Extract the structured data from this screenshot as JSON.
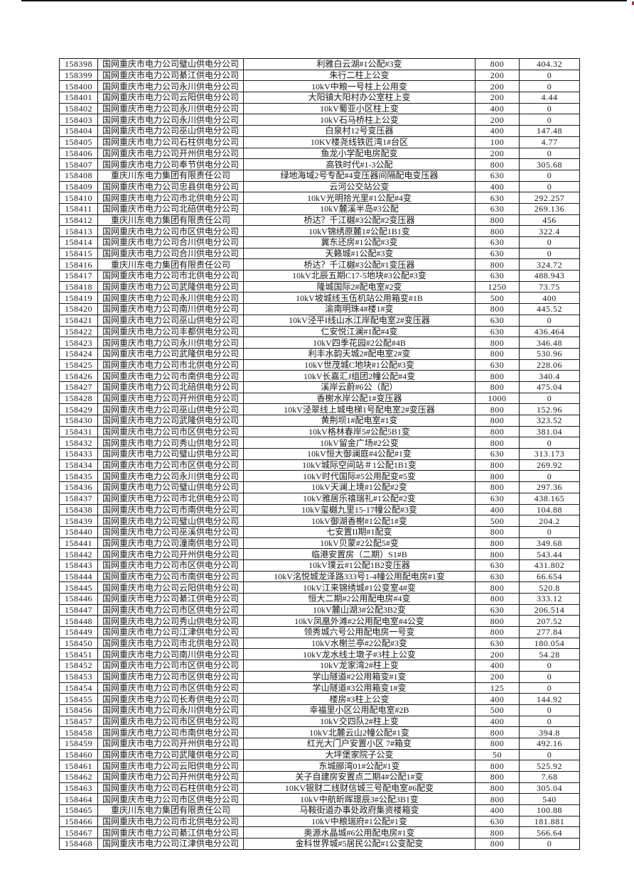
{
  "page": {
    "background": "#ffffff",
    "top_line_color": "#141414",
    "corner_dot_color": "#b23030"
  },
  "table": {
    "rows": [
      [
        "158398",
        "国网重庆市电力公司璧山供电分公司",
        "利雅白云湖#1公配#3变",
        "800",
        "404.32"
      ],
      [
        "158399",
        "国网重庆市电力公司綦江供电分公司",
        "朱行二柱上公变",
        "200",
        "0"
      ],
      [
        "158400",
        "国网重庆市电力公司永川供电分公司",
        "10kV中粮一号柱上公用变",
        "200",
        "0"
      ],
      [
        "158401",
        "国网重庆市电力公司云阳供电分公司",
        "大阳镇大阳村办公室柱上变",
        "200",
        "4.44"
      ],
      [
        "158402",
        "国网重庆市电力公司永川供电分公司",
        "10kV蜀亚小区柱上变",
        "400",
        "0"
      ],
      [
        "158403",
        "国网重庆市电力公司永川供电分公司",
        "10kV石马桥柱上公变",
        "200",
        "0"
      ],
      [
        "158404",
        "国网重庆市电力公司巫山供电分公司",
        "白泉村12号变压器",
        "400",
        "147.48"
      ],
      [
        "158405",
        "国网重庆市电力公司石柱供电分公司",
        "10KV楼尧线铁匠湾1#台区",
        "100",
        "4.77"
      ],
      [
        "158406",
        "国网重庆市电力公司开州供电分公司",
        "鱼龙小学配电房配变",
        "200",
        "0"
      ],
      [
        "158407",
        "国网重庆市电力公司奉节供电分公司",
        "高铁时代#1-3公配",
        "800",
        "305.68"
      ],
      [
        "158408",
        "重庆川东电力集团有限责任公司",
        "绿地海域2号专配#4变压器间隔配电变压器",
        "630",
        "0"
      ],
      [
        "158409",
        "国网重庆市电力公司忠县供电分公司",
        "云河公交站公变",
        "400",
        "0"
      ],
      [
        "158410",
        "国网重庆市电力公司市北供电分公司",
        "10kV光明拾光里#1公配#4变",
        "630",
        "292.257"
      ],
      [
        "158411",
        "国网重庆市电力公司北碚供电分公司",
        "10kV麓溪半岛#3公配",
        "630",
        "269.136"
      ],
      [
        "158412",
        "重庆川东电力集团有限责任公司",
        "桥达？千江樾#3公配#2变压器",
        "800",
        "456"
      ],
      [
        "158413",
        "国网重庆市电力公司市区供电分公司",
        "10kV锦绣原麓1#公配1B1变",
        "800",
        "322.4"
      ],
      [
        "158414",
        "国网重庆市电力公司合川供电分公司",
        "冀东还房#1公配#3变",
        "630",
        "0"
      ],
      [
        "158415",
        "国网重庆市电力公司合川供电分公司",
        "天籁城#1公配#3变",
        "630",
        "0"
      ],
      [
        "158416",
        "重庆川东电力集团有限责任公司",
        "桥达？千江樾#3公配#1变压器",
        "800",
        "324.72"
      ],
      [
        "158417",
        "国网重庆市电力公司市北供电分公司",
        "10kV北辰五期C17-5地块#3公配#3变",
        "630",
        "488.943"
      ],
      [
        "158418",
        "国网重庆市电力公司武隆供电分公司",
        "隆城国际2#配电室#2变",
        "1250",
        "73.75"
      ],
      [
        "158419",
        "国网重庆市电力公司永川供电分公司",
        "10kV坡城线玉伍机站公用箱变#1B",
        "500",
        "400"
      ],
      [
        "158420",
        "国网重庆市电力公司南川供电分公司",
        "渝南明珠4#楼1#变",
        "800",
        "445.52"
      ],
      [
        "158421",
        "国网重庆市电力公司巫山供电分公司",
        "10kV泾平I线山水江岸配电室2#变压器",
        "630",
        "0"
      ],
      [
        "158422",
        "国网重庆市电力公司丰都供电分公司",
        "仁安悦江澜#1配#4变",
        "630",
        "436.464"
      ],
      [
        "158423",
        "国网重庆市电力公司永川供电分公司",
        "10kV四季花园#2公配#4B",
        "800",
        "346.48"
      ],
      [
        "158424",
        "国网重庆市电力公司武隆供电分公司",
        "利丰水韵天城2#配电室2#变",
        "800",
        "530.96"
      ],
      [
        "158425",
        "国网重庆市电力公司市北供电分公司",
        "10kV世茂城C地块#1公配#3变",
        "630",
        "228.06"
      ],
      [
        "158426",
        "国网重庆市电力公司市南供电分公司",
        "10kV长嘉汇J组团2幢公配#4变",
        "800",
        "340.4"
      ],
      [
        "158427",
        "国网重庆市电力公司北碚供电分公司",
        "溪岸云蔚#6公（配）",
        "800",
        "475.04"
      ],
      [
        "158428",
        "国网重庆市电力公司开州供电分公司",
        "香榭水岸公配1#变压器",
        "1000",
        "0"
      ],
      [
        "158429",
        "国网重庆市电力公司巫山供电分公司",
        "10kV泾翠线上城电梯1号配电室2#变压器",
        "800",
        "152.96"
      ],
      [
        "158430",
        "国网重庆市电力公司武隆供电分公司",
        "黄荆坝1#配电室#1变",
        "800",
        "323.52"
      ],
      [
        "158431",
        "国网重庆市电力公司市区供电分公司",
        "10kV格林春岸5#公配5B1变",
        "800",
        "381.04"
      ],
      [
        "158432",
        "国网重庆市电力公司秀山供电分公司",
        "10kV留金广场#2公变",
        "800",
        "0"
      ],
      [
        "158433",
        "国网重庆市电力公司璧山供电分公司",
        "10kV恒大御澜庭#4公配#1变",
        "630",
        "313.173"
      ],
      [
        "158434",
        "国网重庆市电力公司市区供电分公司",
        "10kV城际空间站＃1公配1B1变",
        "800",
        "269.92"
      ],
      [
        "158435",
        "国网重庆市电力公司永川供电分公司",
        "10kV时代国际#5公用配变#5变",
        "800",
        "0"
      ],
      [
        "158436",
        "国网重庆市电力公司璧山供电分公司",
        "10kV天澜上境#1公配#2变",
        "800",
        "297.36"
      ],
      [
        "158437",
        "国网重庆市电力公司市北供电分公司",
        "10kV雅居乐禧瑞礼#1公配#2变",
        "630",
        "438.165"
      ],
      [
        "158438",
        "国网重庆市电力公司市南供电分公司",
        "10kV玺樾九里15-17幢公配#3变",
        "400",
        "104.88"
      ],
      [
        "158439",
        "国网重庆市电力公司璧山供电分公司",
        "10kV御湖香榭#1公配1#变",
        "500",
        "204.2"
      ],
      [
        "158440",
        "国网重庆市电力公司巫溪供电分公司",
        "七安置II期#1配变",
        "800",
        "0"
      ],
      [
        "158441",
        "国网重庆市电力公司潼南供电分公司",
        "10kV贝蒙#2公配5#变",
        "800",
        "349.68"
      ],
      [
        "158442",
        "国网重庆市电力公司开州供电分公司",
        "临港安置房（二期）S1#B",
        "800",
        "543.44"
      ],
      [
        "158443",
        "国网重庆市电力公司市区供电分公司",
        "10kV璞云#1公配1B2变压器",
        "630",
        "431.802"
      ],
      [
        "158444",
        "国网重庆市电力公司市南供电分公司",
        "10kV洺悦城龙泽路333号1-4幢公用配电房#1变",
        "630",
        "66.654"
      ],
      [
        "158445",
        "国网重庆市电力公司云阳供电分公司",
        "10kV江来锦绣城#1公变室4#变",
        "800",
        "520.8"
      ],
      [
        "158446",
        "国网重庆市电力公司綦江供电分公司",
        "恒大二期#2公用配电房#4变",
        "800",
        "333.12"
      ],
      [
        "158447",
        "国网重庆市电力公司市区供电分公司",
        "10kV麓山湖3#公配3B2变",
        "630",
        "206.514"
      ],
      [
        "158448",
        "国网重庆市电力公司秀山供电分公司",
        "10kV凤凰外滩#2公用配电室#4公变",
        "800",
        "207.52"
      ],
      [
        "158449",
        "国网重庆市电力公司江津供电分公司",
        "领秀城六号公用配电房一号变",
        "800",
        "277.84"
      ],
      [
        "158450",
        "国网重庆市电力公司市北供电分公司",
        "10kV水榭兰亭#2公配#3变",
        "630",
        "180.054"
      ],
      [
        "158451",
        "国网重庆市电力公司南川供电分公司",
        "10kV龙水线土墩子#3柱上公变",
        "200",
        "54.28"
      ],
      [
        "158452",
        "国网重庆市电力公司市区供电分公司",
        "10kV龙家湾2#柱上变",
        "400",
        "0"
      ],
      [
        "158453",
        "国网重庆市电力公司市区供电分公司",
        "学山隧道#2公用箱变#1变",
        "200",
        "0"
      ],
      [
        "158454",
        "国网重庆市电力公司市区供电分公司",
        "学山隧道#3公用箱变1#变",
        "125",
        "0"
      ],
      [
        "158455",
        "国网重庆市电力公司长寿供电分公司",
        "楼房#3柱上公变",
        "400",
        "144.92"
      ],
      [
        "158456",
        "国网重庆市电力公司永川供电分公司",
        "幸福里小区公用配电室#2B",
        "500",
        "0"
      ],
      [
        "158457",
        "国网重庆市电力公司市区供电分公司",
        "10kV交四队2#柱上变",
        "400",
        "0"
      ],
      [
        "158458",
        "国网重庆市电力公司市南供电分公司",
        "10kV北麓云山2幢公配#1变",
        "800",
        "394.8"
      ],
      [
        "158459",
        "国网重庆市电力公司开州供电分公司",
        "红光大门户安置小区 7#箱变",
        "800",
        "492.16"
      ],
      [
        "158460",
        "国网重庆市电力公司武隆供电分公司",
        "大坪堡家院子公变",
        "50",
        "0"
      ],
      [
        "158461",
        "国网重庆市电力公司云阳供电分公司",
        "东城郦湾01#公配#1变",
        "800",
        "525.92"
      ],
      [
        "158462",
        "国网重庆市电力公司开州供电分公司",
        "关子自建房安置点二期4#公配1#变",
        "800",
        "7.68"
      ],
      [
        "158463",
        "国网重庆市电力公司石柱供电分公司",
        "10KV银财二线财信城三号配电室#6配变",
        "800",
        "305.04"
      ],
      [
        "158464",
        "国网重庆市电力公司市区供电分公司",
        "10kV中航昕晖璟辰3#公配3B1变",
        "800",
        "540"
      ],
      [
        "158465",
        "重庆川东电力集团有限责任公司",
        "马鞍街道办事处政府集资楼箱变",
        "400",
        "100.88"
      ],
      [
        "158466",
        "国网重庆市电力公司市北供电分公司",
        "10kV中粮瑞府#1公配#1变",
        "630",
        "181.881"
      ],
      [
        "158467",
        "国网重庆市电力公司綦江供电分公司",
        "奥源水晶城#6公用配电房#1变",
        "800",
        "566.64"
      ],
      [
        "158468",
        "国网重庆市电力公司江津供电分公司",
        "金科世界城#5居民公配#1公变配变",
        "800",
        "0"
      ]
    ]
  }
}
